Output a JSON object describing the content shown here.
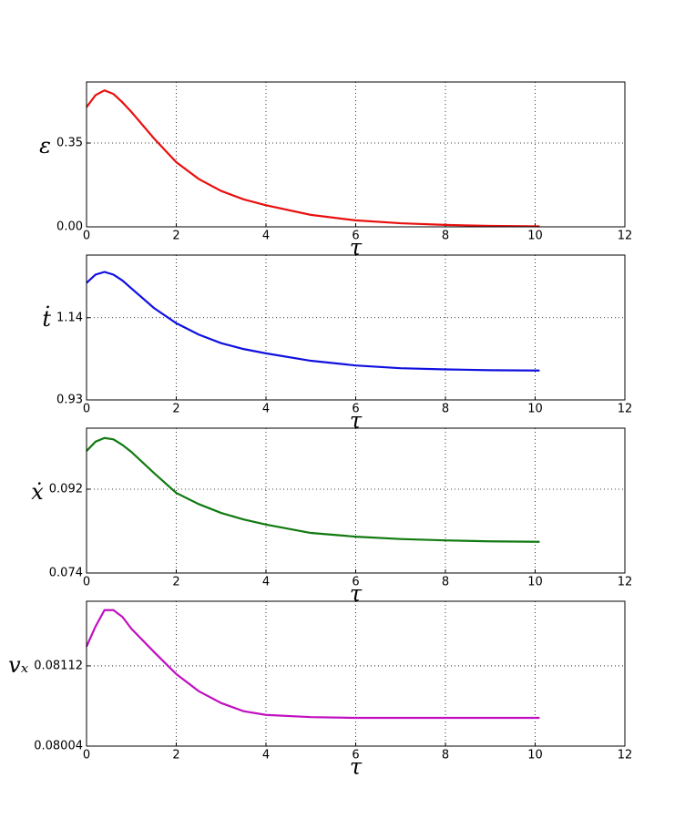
{
  "chart_data": [
    {
      "type": "line",
      "x_label": "τ",
      "y_label": "ε",
      "x": [
        0,
        0.2,
        0.4,
        0.6,
        0.8,
        1,
        1.5,
        2,
        2.5,
        3,
        3.5,
        4,
        5,
        6,
        7,
        8,
        9,
        10.1
      ],
      "series": [
        {
          "name": "ε",
          "color": "#e8100f",
          "values": [
            0.5,
            0.55,
            0.57,
            0.555,
            0.52,
            0.48,
            0.37,
            0.27,
            0.2,
            0.15,
            0.115,
            0.09,
            0.05,
            0.027,
            0.015,
            0.008,
            0.004,
            0.002
          ]
        }
      ],
      "xlim": [
        0,
        12
      ],
      "xticks": [
        0,
        2,
        4,
        6,
        8,
        10,
        12
      ],
      "ylim": [
        0,
        0.605
      ],
      "yticks": [
        {
          "value": 0,
          "label": "0.00"
        },
        0.35
      ],
      "grid": true
    },
    {
      "type": "line",
      "x_label": "τ",
      "y_label": "ṫ",
      "x": [
        0,
        0.2,
        0.4,
        0.6,
        0.8,
        1,
        1.5,
        2,
        2.5,
        3,
        3.5,
        4,
        5,
        6,
        7,
        8,
        9,
        10.1
      ],
      "series": [
        {
          "name": "ṫ",
          "color": "#1010e0",
          "values": [
            1.229,
            1.25,
            1.257,
            1.25,
            1.235,
            1.215,
            1.165,
            1.126,
            1.097,
            1.075,
            1.06,
            1.049,
            1.03,
            1.018,
            1.011,
            1.008,
            1.006,
            1.005
          ]
        }
      ],
      "xlim": [
        0,
        12
      ],
      "xticks": [
        0,
        2,
        4,
        6,
        8,
        10,
        12
      ],
      "ylim": [
        0.93,
        1.3
      ],
      "yticks": [
        0.93,
        1.14
      ],
      "grid": true
    },
    {
      "type": "line",
      "x_label": "τ",
      "y_label": "ẋ",
      "x": [
        0,
        0.2,
        0.4,
        0.6,
        0.8,
        1,
        1.5,
        2,
        2.5,
        3,
        3.5,
        4,
        5,
        6,
        7,
        8,
        9,
        10.1
      ],
      "series": [
        {
          "name": "ẋ",
          "color": "#107a10",
          "values": [
            0.1002,
            0.1022,
            0.103,
            0.1027,
            0.1015,
            0.1,
            0.0955,
            0.0912,
            0.0888,
            0.0869,
            0.0855,
            0.0844,
            0.0826,
            0.0818,
            0.0813,
            0.081,
            0.0808,
            0.0807
          ]
        }
      ],
      "xlim": [
        0,
        12
      ],
      "xticks": [
        0,
        2,
        4,
        6,
        8,
        10,
        12
      ],
      "ylim": [
        0.074,
        0.1051
      ],
      "yticks": [
        0.074,
        0.092
      ],
      "grid": true
    },
    {
      "type": "line",
      "x_label": "τ",
      "y_label": "vₓ",
      "x": [
        0,
        0.2,
        0.4,
        0.6,
        0.8,
        1,
        1.5,
        2,
        2.5,
        3,
        3.5,
        4,
        5,
        6,
        7,
        8,
        9,
        10.1
      ],
      "series": [
        {
          "name": "vₓ",
          "color": "#c010c0",
          "values": [
            0.08138,
            0.08165,
            0.08187,
            0.08187,
            0.08178,
            0.08162,
            0.08131,
            0.08101,
            0.08078,
            0.08062,
            0.08051,
            0.08046,
            0.08043,
            0.08042,
            0.08042,
            0.08042,
            0.08042,
            0.08042
          ]
        }
      ],
      "xlim": [
        0,
        12
      ],
      "xticks": [
        0,
        2,
        4,
        6,
        8,
        10,
        12
      ],
      "ylim": [
        0.08004,
        0.08199
      ],
      "yticks": [
        0.08004,
        0.08112
      ],
      "grid": true
    }
  ]
}
